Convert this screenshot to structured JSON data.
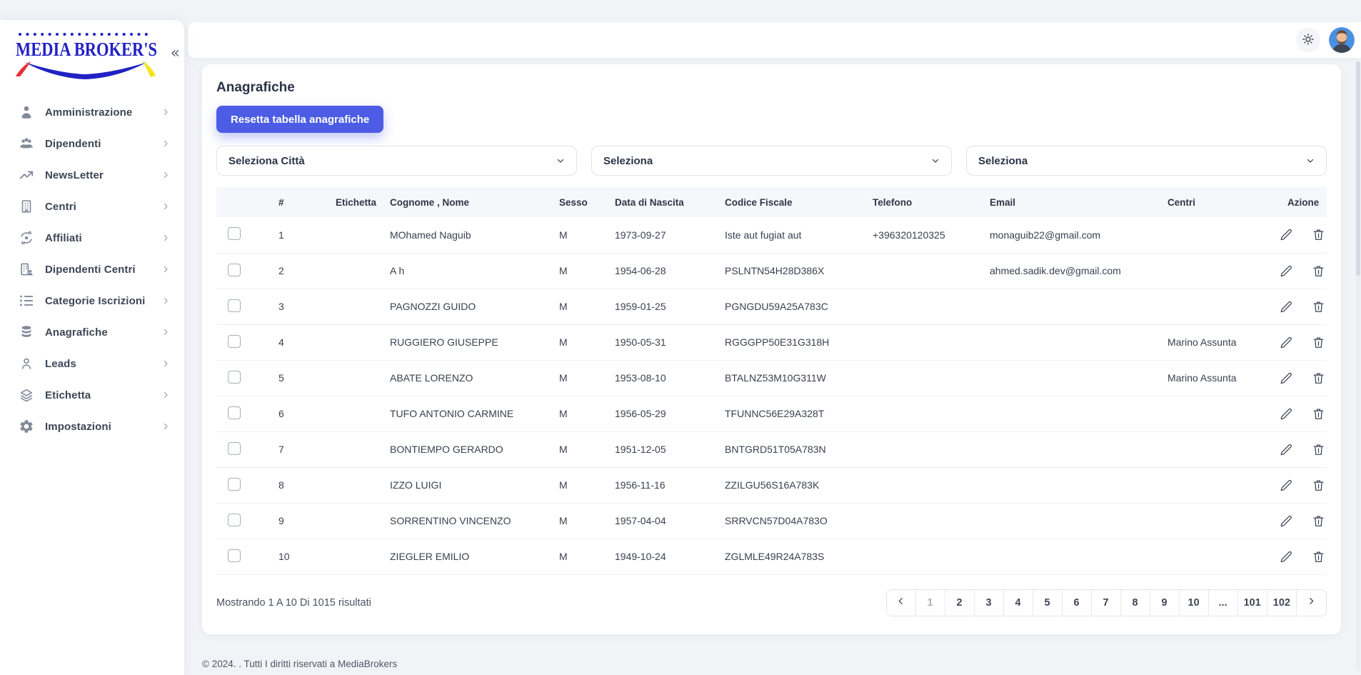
{
  "colors": {
    "primary": "#4c5ce4",
    "logo_blue": "#2121c4",
    "logo_red": "#e63036",
    "logo_yellow": "#f4e41c",
    "avatar_bg": "#4a90e2"
  },
  "sidebar": {
    "logo_text": "MEDIA BROKER'S",
    "collapse_glyph": "«",
    "items": [
      {
        "label": "Amministrazione",
        "icon": "user-tie-icon"
      },
      {
        "label": "Dipendenti",
        "icon": "users-icon"
      },
      {
        "label": "NewsLetter",
        "icon": "trending-up-icon"
      },
      {
        "label": "Centri",
        "icon": "building-icon"
      },
      {
        "label": "Affiliati",
        "icon": "affiliates-sync-icon"
      },
      {
        "label": "Dipendenti Centri",
        "icon": "building-user-icon"
      },
      {
        "label": "Categorie Iscrizioni",
        "icon": "list-icon"
      },
      {
        "label": "Anagrafiche",
        "icon": "database-icon"
      },
      {
        "label": "Leads",
        "icon": "person-outline-icon"
      },
      {
        "label": "Etichetta",
        "icon": "layers-icon"
      },
      {
        "label": "Impostazioni",
        "icon": "gear-icon"
      }
    ]
  },
  "page": {
    "title": "Anagrafiche",
    "reset_button": "Resetta tabella anagrafiche"
  },
  "filters": {
    "city_select": "Seleziona Città",
    "select2": "Seleziona",
    "select3": "Seleziona"
  },
  "table": {
    "columns": [
      "#",
      "Etichetta",
      "Cognome , Nome",
      "Sesso",
      "Data di Nascita",
      "Codice Fiscale",
      "Telefono",
      "Email",
      "Centri",
      "Azione"
    ],
    "rows": [
      {
        "num": "1",
        "etichetta": "",
        "nome": "MOhamed Naguib",
        "sesso": "M",
        "nascita": "1973-09-27",
        "codice": "Iste aut fugiat aut",
        "telefono": "+396320120325",
        "email": "monaguib22@gmail.com",
        "centri": ""
      },
      {
        "num": "2",
        "etichetta": "",
        "nome": "A h",
        "sesso": "M",
        "nascita": "1954-06-28",
        "codice": "PSLNTN54H28D386X",
        "telefono": "",
        "email": "ahmed.sadik.dev@gmail.com",
        "centri": ""
      },
      {
        "num": "3",
        "etichetta": "",
        "nome": "PAGNOZZI GUIDO",
        "sesso": "M",
        "nascita": "1959-01-25",
        "codice": "PGNGDU59A25A783C",
        "telefono": "",
        "email": "",
        "centri": ""
      },
      {
        "num": "4",
        "etichetta": "",
        "nome": "RUGGIERO GIUSEPPE",
        "sesso": "M",
        "nascita": "1950-05-31",
        "codice": "RGGGPP50E31G318H",
        "telefono": "",
        "email": "",
        "centri": "Marino Assunta"
      },
      {
        "num": "5",
        "etichetta": "",
        "nome": "ABATE LORENZO",
        "sesso": "M",
        "nascita": "1953-08-10",
        "codice": "BTALNZ53M10G311W",
        "telefono": "",
        "email": "",
        "centri": "Marino Assunta"
      },
      {
        "num": "6",
        "etichetta": "",
        "nome": "TUFO ANTONIO CARMINE",
        "sesso": "M",
        "nascita": "1956-05-29",
        "codice": "TFUNNC56E29A328T",
        "telefono": "",
        "email": "",
        "centri": ""
      },
      {
        "num": "7",
        "etichetta": "",
        "nome": "BONTIEMPO GERARDO",
        "sesso": "M",
        "nascita": "1951-12-05",
        "codice": "BNTGRD51T05A783N",
        "telefono": "",
        "email": "",
        "centri": ""
      },
      {
        "num": "8",
        "etichetta": "",
        "nome": "IZZO LUIGI",
        "sesso": "M",
        "nascita": "1956-11-16",
        "codice": "ZZILGU56S16A783K",
        "telefono": "",
        "email": "",
        "centri": ""
      },
      {
        "num": "9",
        "etichetta": "",
        "nome": "SORRENTINO VINCENZO",
        "sesso": "M",
        "nascita": "1957-04-04",
        "codice": "SRRVCN57D04A783O",
        "telefono": "",
        "email": "",
        "centri": ""
      },
      {
        "num": "10",
        "etichetta": "",
        "nome": "ZIEGLER EMILIO",
        "sesso": "M",
        "nascita": "1949-10-24",
        "codice": "ZGLMLE49R24A783S",
        "telefono": "",
        "email": "",
        "centri": ""
      }
    ]
  },
  "pagination": {
    "summary": "Mostrando 1 A 10 Di 1015 risultati",
    "pages": [
      "1",
      "2",
      "3",
      "4",
      "5",
      "6",
      "7",
      "8",
      "9",
      "10",
      "...",
      "101",
      "102"
    ],
    "current": "1"
  },
  "footer": {
    "copyright": "© 2024. . Tutti I diritti riservati a MediaBrokers"
  }
}
